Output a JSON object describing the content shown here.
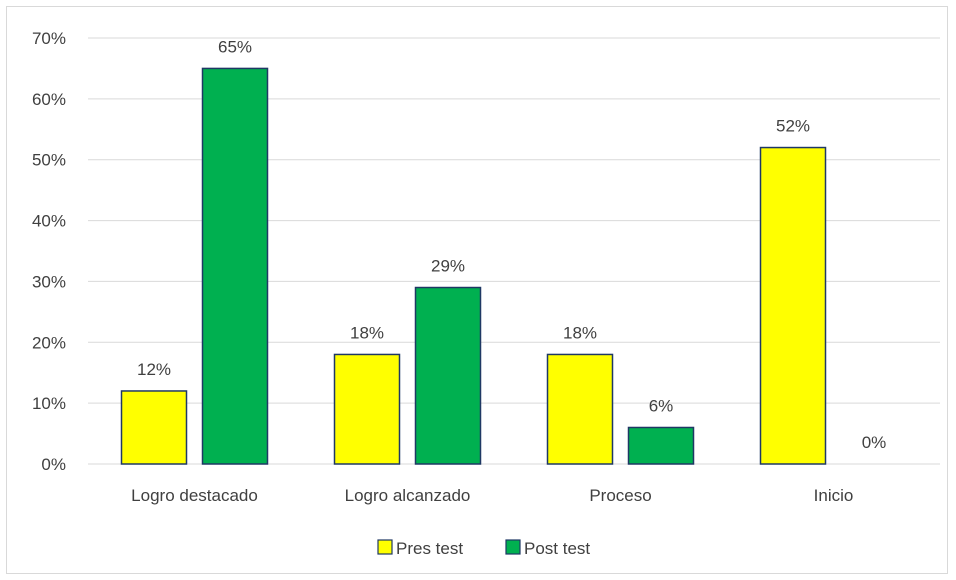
{
  "chart_data": {
    "type": "bar",
    "title": "",
    "xlabel": "",
    "ylabel": "",
    "ylim": [
      0,
      70
    ],
    "yticks": [
      "0%",
      "10%",
      "20%",
      "30%",
      "40%",
      "50%",
      "60%",
      "70%"
    ],
    "categories": [
      "Logro destacado",
      "Logro alcanzado",
      "Proceso",
      "Inicio"
    ],
    "series": [
      {
        "name": "Pres test",
        "values": [
          12,
          18,
          18,
          52
        ],
        "labels": [
          "12%",
          "18%",
          "18%",
          "52%"
        ],
        "color": "#FFFF00"
      },
      {
        "name": "Post test",
        "values": [
          65,
          29,
          6,
          0
        ],
        "labels": [
          "65%",
          "29%",
          "6%",
          "0%"
        ],
        "color": "#00B050"
      }
    ],
    "bar_outline_color": "#1F3864",
    "grid": true,
    "legend_position": "bottom"
  }
}
